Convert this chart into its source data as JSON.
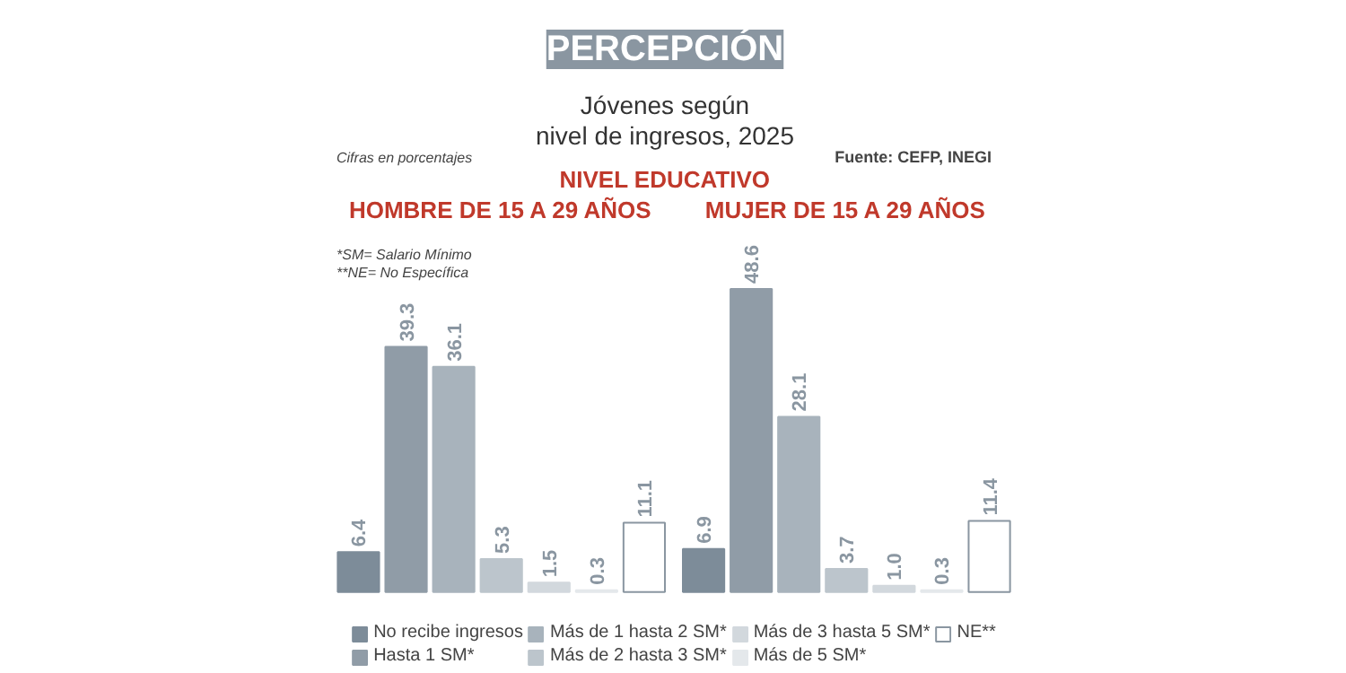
{
  "chart_data": {
    "type": "bar",
    "title": "PERCEPCIÓN",
    "subtitle": "Jóvenes según\nnivel de ingresos, 2025",
    "categories": [
      "HOMBRE DE 15 A 29 AÑOS",
      "MUJER DE 15 A 29 AÑOS"
    ],
    "series": [
      {
        "name": "No recibe ingresos",
        "color": "#7d8c99",
        "values": [
          6.4,
          6.9
        ]
      },
      {
        "name": "Hasta 1 SM*",
        "color": "#909ca7",
        "values": [
          39.3,
          48.6
        ]
      },
      {
        "name": "Más de 1 hasta 2 SM*",
        "color": "#a8b3bc",
        "values": [
          36.1,
          28.1
        ]
      },
      {
        "name": "Más de 2 hasta 3 SM*",
        "color": "#bcc5cc",
        "values": [
          5.3,
          3.7
        ]
      },
      {
        "name": "Más de 3 hasta 5 SM*",
        "color": "#d2d8dd",
        "values": [
          1.5,
          1.0
        ],
        "value_labels": [
          "1.5",
          "1.0"
        ]
      },
      {
        "name": "Más de 5 SM*",
        "color": "#e4e8eb",
        "values": [
          0.3,
          0.3
        ]
      },
      {
        "name": "NE**",
        "color": "#ffffff",
        "values": [
          11.1,
          11.4
        ]
      }
    ],
    "data_labels": true,
    "legend": "bottom",
    "grid": false,
    "annotations": [
      "Cifras en porcentajes",
      "Fuente: CEFP, INEGI",
      "NIVEL EDUCATIVO",
      "*SM= Salario Mínimo",
      "**NE= No Específica"
    ]
  }
}
